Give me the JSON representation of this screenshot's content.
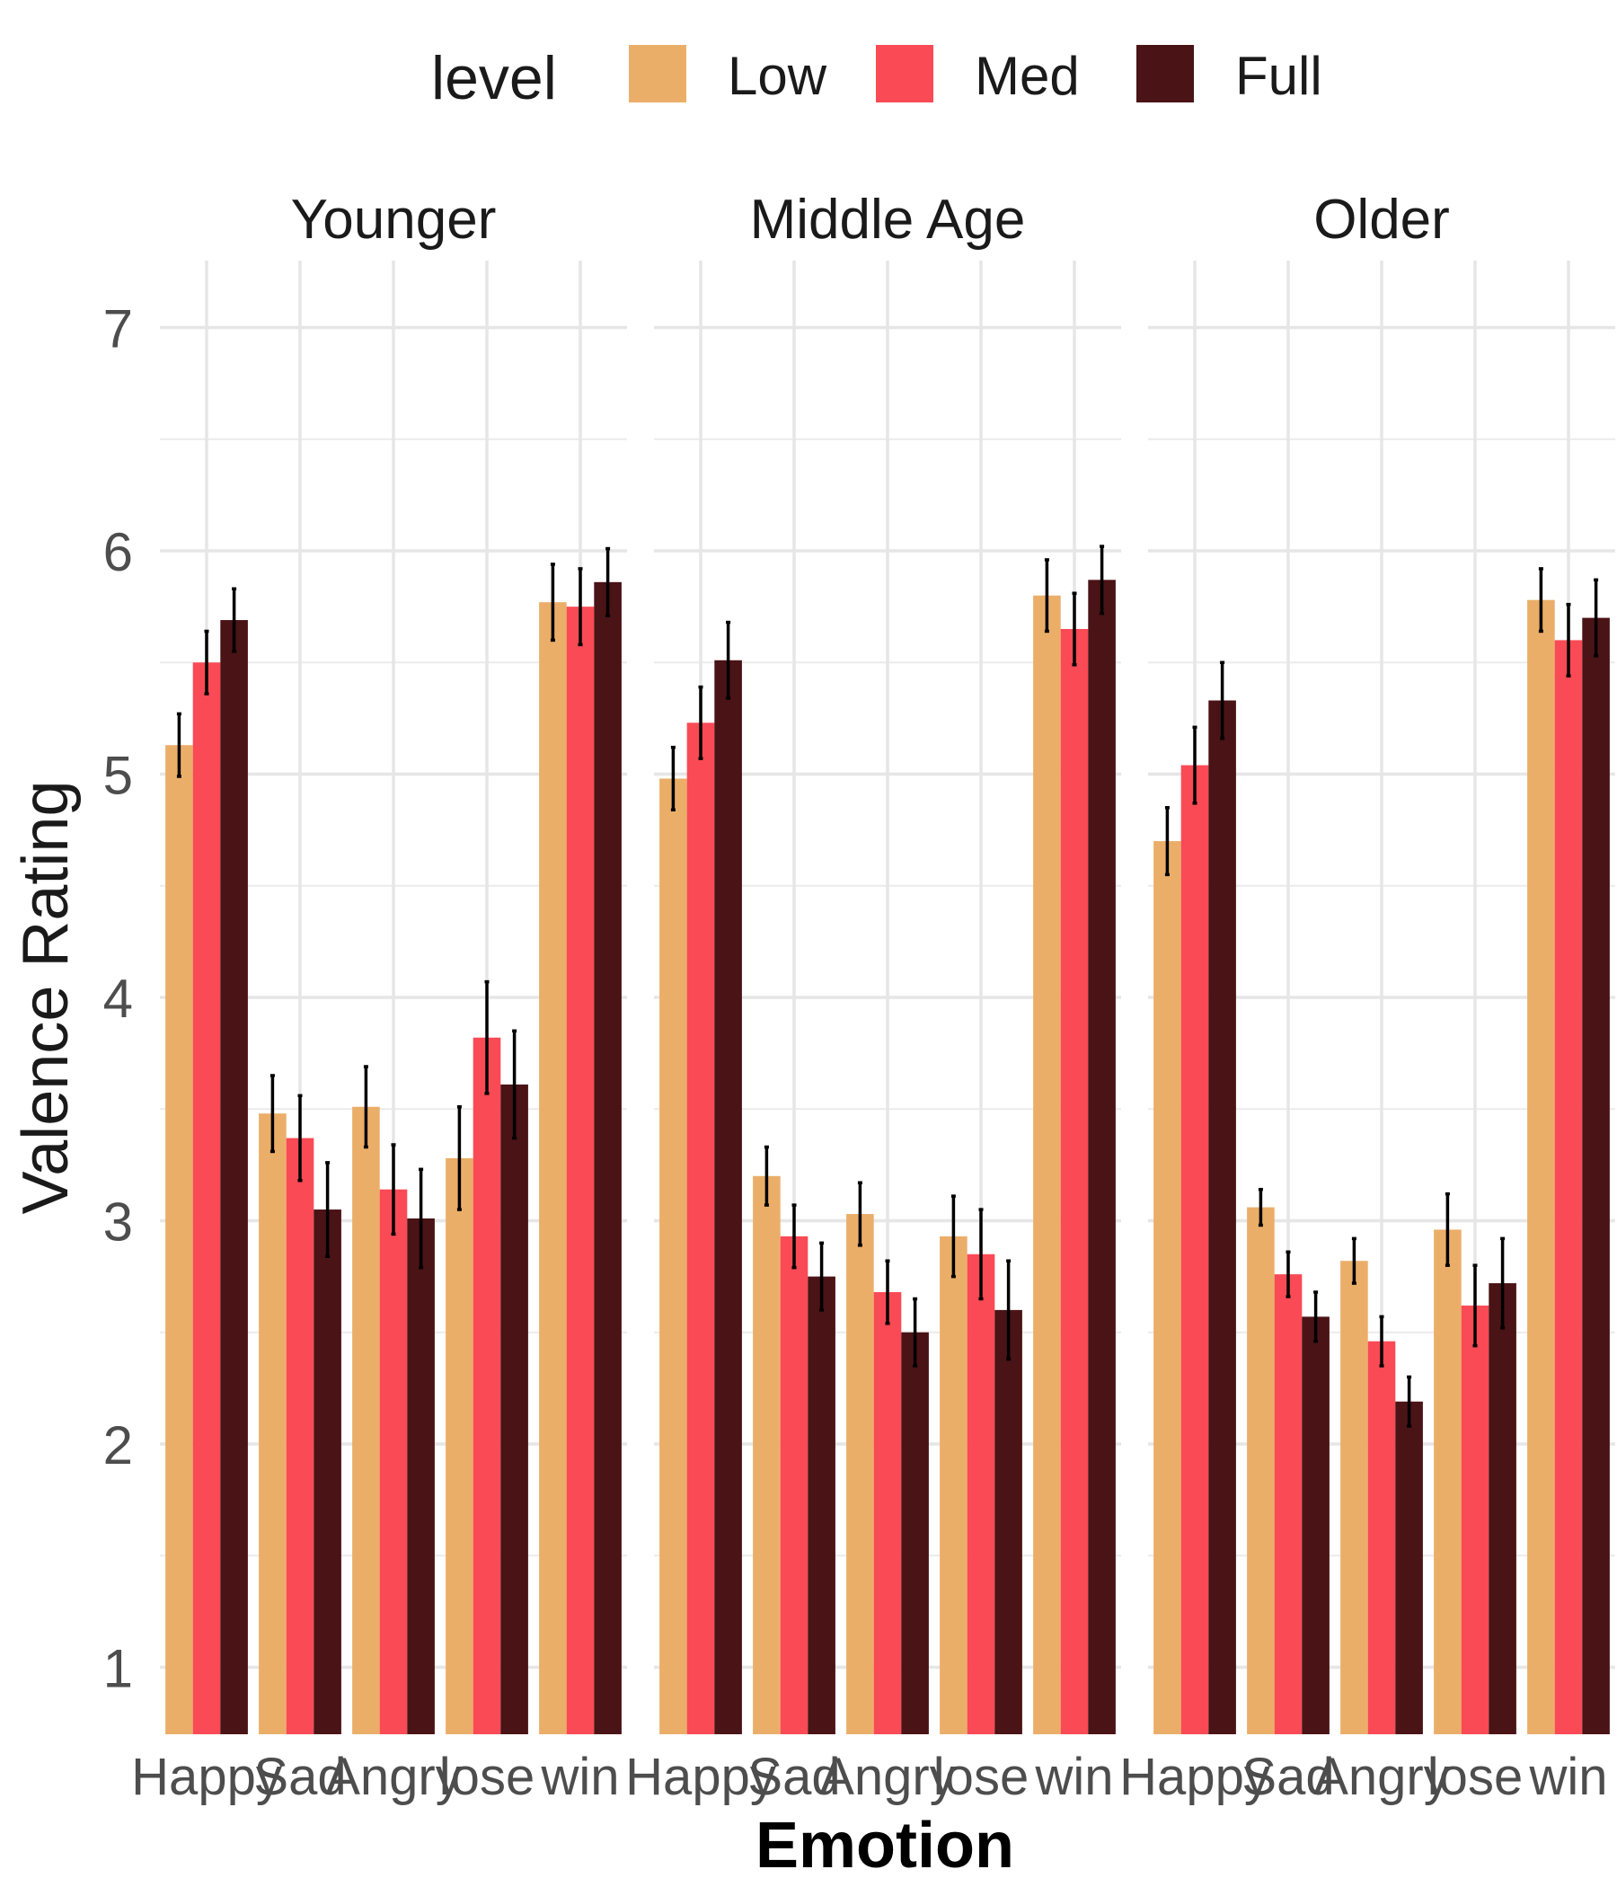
{
  "chart_data": {
    "type": "bar",
    "legend": {
      "title": "level",
      "position": "top",
      "items": [
        {
          "name": "Low",
          "color": "#EBAE69"
        },
        {
          "name": "Med",
          "color": "#F94A55"
        },
        {
          "name": "Full",
          "color": "#4A1316"
        }
      ]
    },
    "xlabel": "Emotion",
    "ylabel": "Valence Rating",
    "categories": [
      "Happy",
      "Sad",
      "Angry",
      "lose",
      "win"
    ],
    "y_ticks": [
      1,
      2,
      3,
      4,
      5,
      6,
      7
    ],
    "ylim": [
      0.7,
      7.3
    ],
    "grid": true,
    "panels": [
      {
        "label": "Younger",
        "series": [
          {
            "name": "Low",
            "values": [
              5.13,
              3.48,
              3.51,
              3.28,
              5.77
            ],
            "errors": [
              0.14,
              0.17,
              0.18,
              0.23,
              0.17
            ]
          },
          {
            "name": "Med",
            "values": [
              5.5,
              3.37,
              3.14,
              3.82,
              5.75
            ],
            "errors": [
              0.14,
              0.19,
              0.2,
              0.25,
              0.17
            ]
          },
          {
            "name": "Full",
            "values": [
              5.69,
              3.05,
              3.01,
              3.61,
              5.86
            ],
            "errors": [
              0.14,
              0.21,
              0.22,
              0.24,
              0.15
            ]
          }
        ]
      },
      {
        "label": "Middle Age",
        "series": [
          {
            "name": "Low",
            "values": [
              4.98,
              3.2,
              3.03,
              2.93,
              5.8
            ],
            "errors": [
              0.14,
              0.13,
              0.14,
              0.18,
              0.16
            ]
          },
          {
            "name": "Med",
            "values": [
              5.23,
              2.93,
              2.68,
              2.85,
              5.65
            ],
            "errors": [
              0.16,
              0.14,
              0.14,
              0.2,
              0.16
            ]
          },
          {
            "name": "Full",
            "values": [
              5.51,
              2.75,
              2.5,
              2.6,
              5.87
            ],
            "errors": [
              0.17,
              0.15,
              0.15,
              0.22,
              0.15
            ]
          }
        ]
      },
      {
        "label": "Older",
        "series": [
          {
            "name": "Low",
            "values": [
              4.7,
              3.06,
              2.82,
              2.96,
              5.78
            ],
            "errors": [
              0.15,
              0.08,
              0.1,
              0.16,
              0.14
            ]
          },
          {
            "name": "Med",
            "values": [
              5.04,
              2.76,
              2.46,
              2.62,
              5.6
            ],
            "errors": [
              0.17,
              0.1,
              0.11,
              0.18,
              0.16
            ]
          },
          {
            "name": "Full",
            "values": [
              5.33,
              2.57,
              2.19,
              2.72,
              5.7
            ],
            "errors": [
              0.17,
              0.11,
              0.11,
              0.2,
              0.17
            ]
          }
        ]
      }
    ]
  }
}
